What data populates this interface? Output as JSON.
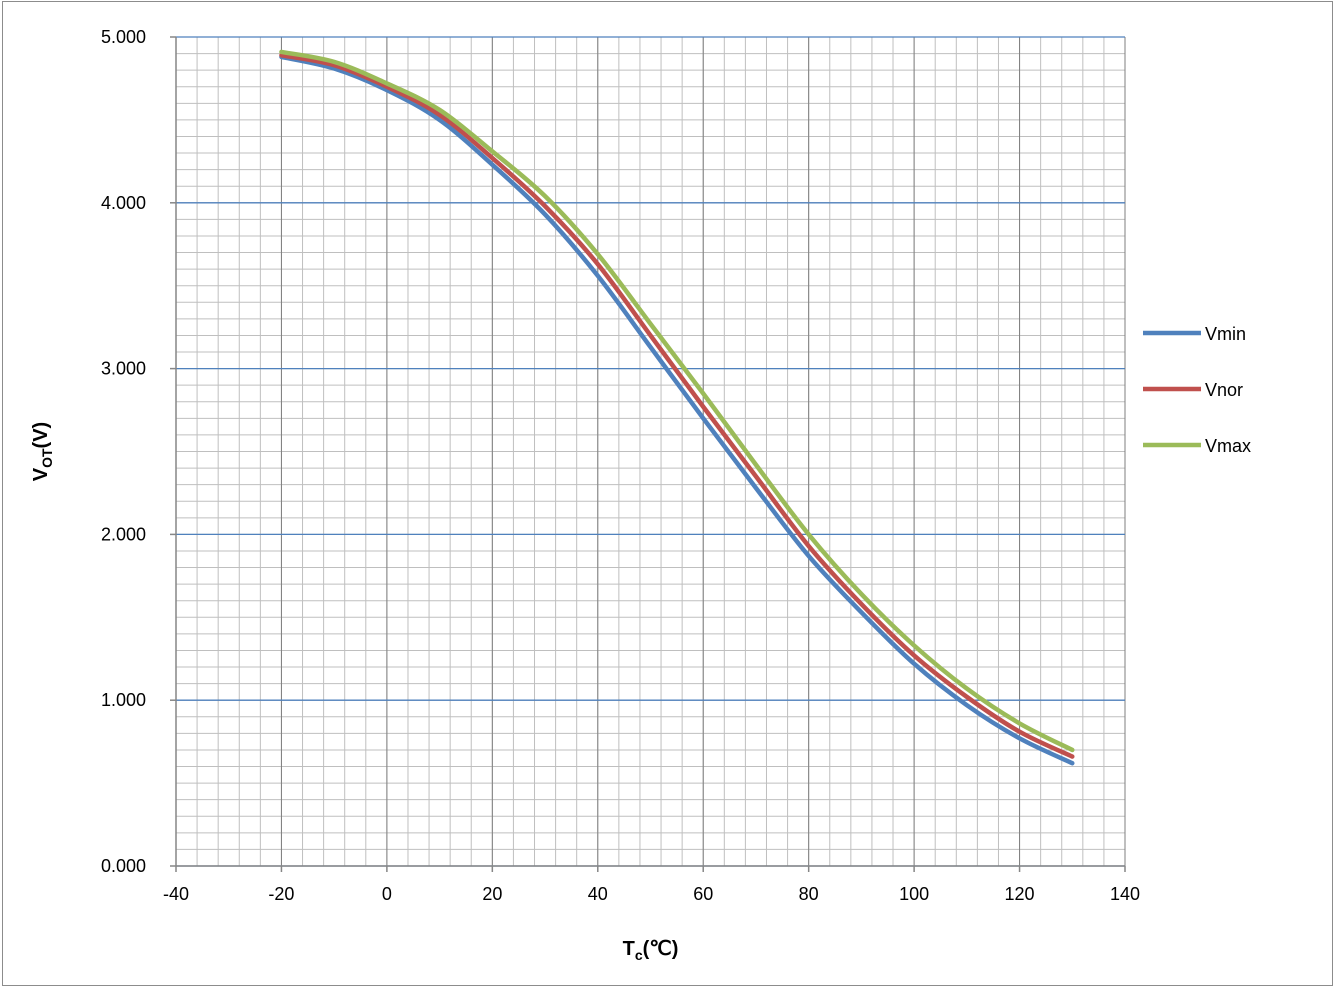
{
  "chart_data": {
    "type": "line",
    "title": "",
    "xlabel": {
      "main": "T",
      "sub": "c",
      "suffix": "(℃)"
    },
    "ylabel": {
      "main": "V",
      "sub": "OT",
      "suffix": "(V)"
    },
    "xlim": [
      -40,
      140
    ],
    "ylim": [
      0,
      5
    ],
    "x_ticks": [
      -40,
      -20,
      0,
      20,
      40,
      60,
      80,
      100,
      120,
      140
    ],
    "x_tick_labels": [
      "-40",
      "-20",
      "0",
      "20",
      "40",
      "60",
      "80",
      "100",
      "120",
      "140"
    ],
    "y_ticks": [
      0,
      1,
      2,
      3,
      4,
      5
    ],
    "y_tick_labels": [
      "0.000",
      "1.000",
      "2.000",
      "3.000",
      "4.000",
      "5.000"
    ],
    "grid": {
      "major": true,
      "minor": true,
      "x_minor_step": 4,
      "y_minor_step": 0.1
    },
    "legend": "right",
    "x": [
      -20,
      -10,
      0,
      10,
      20,
      30,
      40,
      50,
      60,
      70,
      80,
      90,
      100,
      110,
      120,
      130
    ],
    "series": [
      {
        "name": "Vmin",
        "color": "#4f81bd",
        "values": [
          4.88,
          4.81,
          4.68,
          4.5,
          4.23,
          3.93,
          3.56,
          3.13,
          2.7,
          2.28,
          1.87,
          1.53,
          1.22,
          0.97,
          0.77,
          0.62
        ]
      },
      {
        "name": "Vnor",
        "color": "#c0504d",
        "values": [
          4.89,
          4.83,
          4.7,
          4.53,
          4.27,
          3.98,
          3.63,
          3.2,
          2.77,
          2.35,
          1.93,
          1.58,
          1.27,
          1.02,
          0.81,
          0.66
        ]
      },
      {
        "name": "Vmax",
        "color": "#9bbb59",
        "values": [
          4.91,
          4.85,
          4.72,
          4.56,
          4.31,
          4.04,
          3.69,
          3.27,
          2.85,
          2.42,
          2.0,
          1.64,
          1.33,
          1.07,
          0.86,
          0.7
        ]
      }
    ]
  }
}
